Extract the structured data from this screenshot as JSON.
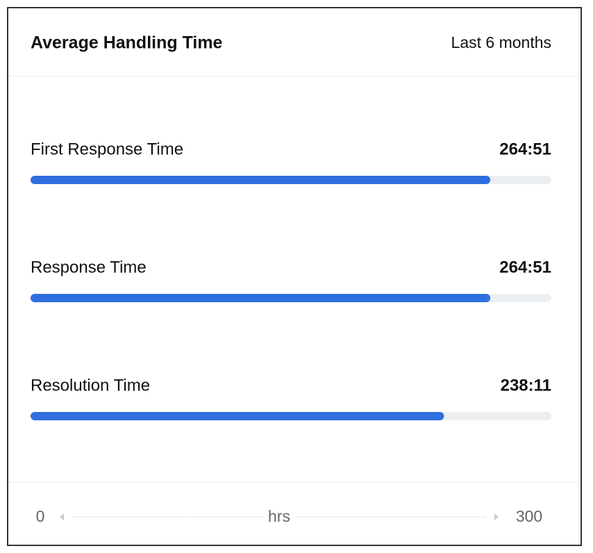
{
  "chart_data": {
    "type": "bar",
    "orientation": "horizontal",
    "title": "Average Handling Time",
    "subtitle": "Last 6 months",
    "categories": [
      "First Response Time",
      "Response Time",
      "Resolution Time"
    ],
    "values": [
      264.85,
      264.85,
      238.18
    ],
    "value_labels": [
      "264:51",
      "264:51",
      "238:11"
    ],
    "color": "#2f6fdf",
    "track_color": "#eceff1",
    "xlim": [
      0,
      300
    ],
    "xticks": [
      0,
      300
    ],
    "xlabel": "hrs"
  }
}
